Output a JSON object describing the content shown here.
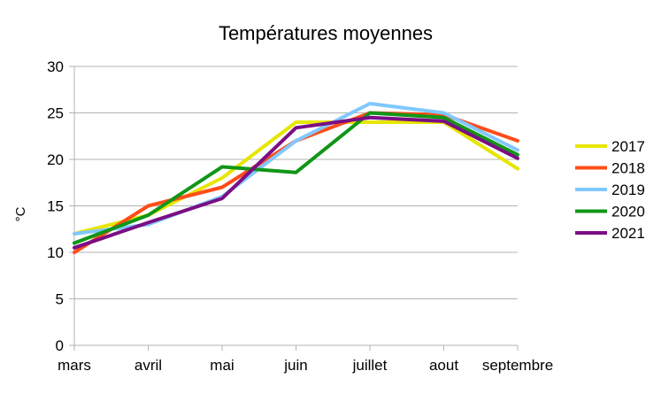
{
  "chart_data": {
    "type": "line",
    "title": "Températures moyennes",
    "xlabel": "",
    "ylabel": "°C",
    "categories": [
      "mars",
      "avril",
      "mai",
      "juin",
      "juillet",
      "aout",
      "septembre"
    ],
    "ylim": [
      0,
      30
    ],
    "yticks": [
      0,
      5,
      10,
      15,
      20,
      25,
      30
    ],
    "grid": true,
    "legend_position": "right",
    "series": [
      {
        "name": "2017",
        "color": "#e6e600",
        "values": [
          12,
          14,
          18,
          24,
          24,
          24,
          19
        ]
      },
      {
        "name": "2018",
        "color": "#ff4d1a",
        "values": [
          10,
          15,
          17,
          22,
          25,
          24.8,
          22
        ]
      },
      {
        "name": "2019",
        "color": "#80c8ff",
        "values": [
          12,
          13,
          16,
          22,
          26,
          25,
          21
        ]
      },
      {
        "name": "2020",
        "color": "#109618",
        "values": [
          11,
          14,
          19.2,
          18.6,
          25,
          24.5,
          20.5
        ]
      },
      {
        "name": "2021",
        "color": "#7b0e84",
        "values": [
          10.5,
          13.2,
          15.8,
          23.4,
          24.5,
          24.1,
          20.1
        ]
      }
    ]
  }
}
